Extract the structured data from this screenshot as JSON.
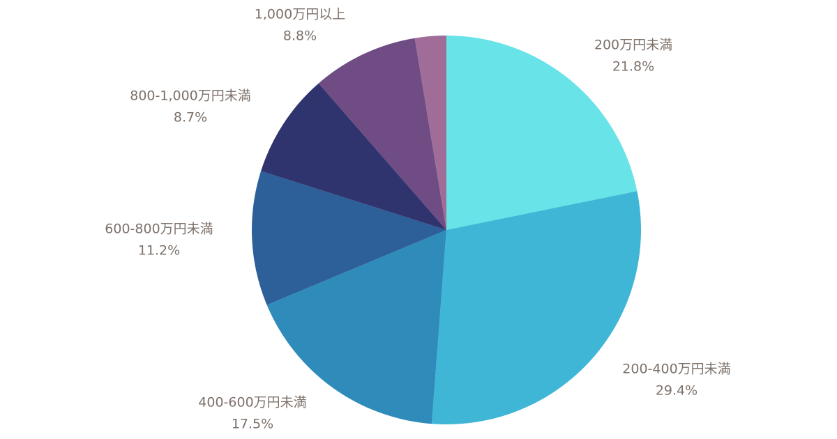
{
  "chart_data": {
    "type": "pie",
    "categories": [
      "200万円未満",
      "200-400万円未満",
      "400-600万円未満",
      "600-800万円未満",
      "800-1,000万円未満",
      "1,000万円以上",
      null
    ],
    "values": [
      21.8,
      29.4,
      17.5,
      11.2,
      8.7,
      8.8,
      2.6
    ],
    "value_labels": [
      "21.8%",
      "29.4%",
      "17.5%",
      "11.2%",
      "8.7%",
      "8.8%",
      null
    ],
    "colors": [
      "#68e3e8",
      "#40b6d6",
      "#2e8bba",
      "#2d5f98",
      "#30346e",
      "#6f4c84",
      "#a06c98"
    ]
  }
}
